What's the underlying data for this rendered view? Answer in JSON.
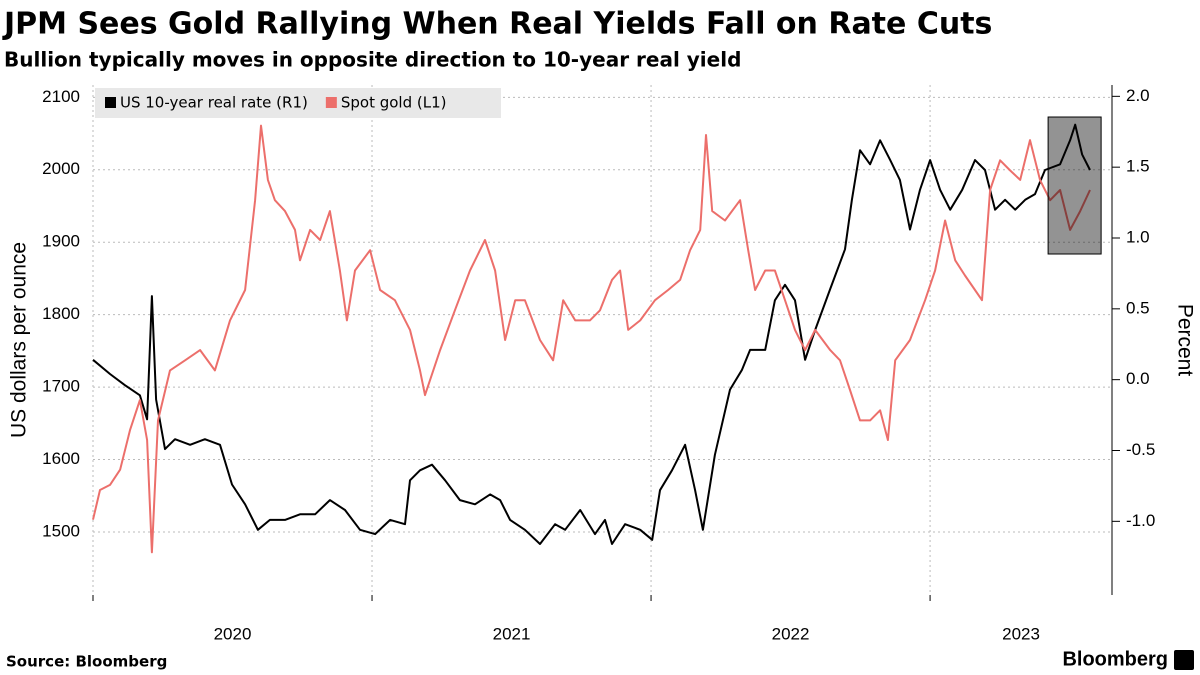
{
  "chart_data": {
    "type": "line",
    "title": "JPM Sees Gold Rallying When Real Yields Fall on Rate Cuts",
    "subtitle": "Bullion typically moves in opposite direction to 10-year real yield",
    "y_label": "US dollars per ounce",
    "y2_label": "Percent",
    "source": "Source: Bloomberg",
    "brand": "Bloomberg",
    "xlim": [
      2020,
      2023.652
    ],
    "xticks": [
      2020,
      2021,
      2022,
      2023
    ],
    "ylim": [
      1413,
      2117
    ],
    "yticks": [
      1500,
      1600,
      1700,
      1800,
      1900,
      2000,
      2100
    ],
    "y2lim": [
      -1.52,
      2.08
    ],
    "y2ticks": [
      {
        "value": -1.0,
        "label": "-1.0"
      },
      -0.5,
      {
        "value": 0.0,
        "label": "0.0"
      },
      0.5,
      {
        "value": 1.0,
        "label": "1.0"
      },
      1.5,
      {
        "value": 2.0,
        "label": "2.0"
      }
    ],
    "grid": true,
    "legend": "top-left",
    "highlight": {
      "x": [
        2023.423,
        2023.613
      ],
      "y2": [
        0.887,
        1.854
      ],
      "color": "#808080"
    },
    "series": [
      {
        "name": "US 10-year real rate (R1)",
        "color": "#000000",
        "axis": "y2",
        "x": [
          2020.0,
          2020.061,
          2020.115,
          2020.168,
          2020.194,
          2020.211,
          2020.226,
          2020.258,
          2020.294,
          2020.348,
          2020.401,
          2020.455,
          2020.498,
          2020.545,
          2020.591,
          2020.634,
          2020.688,
          2020.742,
          2020.796,
          2020.849,
          2020.903,
          2020.957,
          2021.011,
          2021.065,
          2021.118,
          2021.136,
          2021.172,
          2021.215,
          2021.262,
          2021.315,
          2021.369,
          2021.423,
          2021.459,
          2021.495,
          2021.548,
          2021.602,
          2021.656,
          2021.692,
          2021.746,
          2021.799,
          2021.835,
          2021.86,
          2021.907,
          2021.961,
          2022.004,
          2022.032,
          2022.075,
          2022.122,
          2022.158,
          2022.186,
          2022.229,
          2022.283,
          2022.326,
          2022.355,
          2022.409,
          2022.444,
          2022.48,
          2022.516,
          2022.552,
          2022.588,
          2022.642,
          2022.695,
          2022.72,
          2022.749,
          2022.785,
          2022.821,
          2022.857,
          2022.892,
          2022.928,
          2022.964,
          2023.0,
          2023.036,
          2023.072,
          2023.115,
          2023.161,
          2023.197,
          2023.233,
          2023.269,
          2023.305,
          2023.341,
          2023.376,
          2023.412,
          2023.466,
          2023.502,
          2023.52,
          2023.545,
          2023.573
        ],
        "values": [
          0.14,
          0.04,
          -0.04,
          -0.11,
          -0.28,
          0.59,
          -0.14,
          -0.49,
          -0.42,
          -0.46,
          -0.42,
          -0.46,
          -0.74,
          -0.88,
          -1.06,
          -0.99,
          -0.99,
          -0.95,
          -0.95,
          -0.85,
          -0.92,
          -1.06,
          -1.09,
          -0.99,
          -1.02,
          -0.71,
          -0.64,
          -0.6,
          -0.71,
          -0.85,
          -0.88,
          -0.81,
          -0.85,
          -0.99,
          -1.06,
          -1.16,
          -1.02,
          -1.06,
          -0.92,
          -1.09,
          -0.99,
          -1.16,
          -1.02,
          -1.06,
          -1.13,
          -0.78,
          -0.64,
          -0.46,
          -0.78,
          -1.06,
          -0.53,
          -0.07,
          0.07,
          0.21,
          0.21,
          0.56,
          0.67,
          0.56,
          0.14,
          0.35,
          0.64,
          0.92,
          1.27,
          1.62,
          1.52,
          1.69,
          1.55,
          1.41,
          1.06,
          1.34,
          1.55,
          1.34,
          1.2,
          1.34,
          1.55,
          1.48,
          1.2,
          1.27,
          1.2,
          1.27,
          1.31,
          1.48,
          1.52,
          1.69,
          1.8,
          1.59,
          1.48
        ]
      },
      {
        "name": "Spot gold (L1)",
        "color": "#ec6f6b",
        "axis": "y",
        "x": [
          2020.0,
          2020.025,
          2020.061,
          2020.097,
          2020.133,
          2020.168,
          2020.194,
          2020.211,
          2020.233,
          2020.276,
          2020.33,
          2020.384,
          2020.437,
          2020.491,
          2020.545,
          2020.581,
          2020.602,
          2020.627,
          2020.652,
          2020.688,
          2020.724,
          2020.742,
          2020.778,
          2020.814,
          2020.849,
          2020.885,
          2020.91,
          2020.939,
          2020.993,
          2021.029,
          2021.082,
          2021.136,
          2021.172,
          2021.19,
          2021.244,
          2021.297,
          2021.351,
          2021.405,
          2021.441,
          2021.477,
          2021.513,
          2021.548,
          2021.602,
          2021.649,
          2021.685,
          2021.728,
          2021.781,
          2021.817,
          2021.86,
          2021.889,
          2021.918,
          2021.961,
          2022.014,
          2022.061,
          2022.104,
          2022.14,
          2022.176,
          2022.197,
          2022.219,
          2022.265,
          2022.319,
          2022.348,
          2022.373,
          2022.409,
          2022.444,
          2022.48,
          2022.516,
          2022.552,
          2022.588,
          2022.642,
          2022.677,
          2022.713,
          2022.749,
          2022.785,
          2022.821,
          2022.849,
          2022.875,
          2022.928,
          2022.982,
          2023.018,
          2023.054,
          2023.09,
          2023.125,
          2023.161,
          2023.186,
          2023.215,
          2023.251,
          2023.287,
          2023.323,
          2023.358,
          2023.394,
          2023.43,
          2023.466,
          2023.502,
          2023.538,
          2023.573
        ],
        "values": [
          1517,
          1558,
          1565,
          1586,
          1641,
          1682,
          1627,
          1472,
          1654,
          1723,
          1737,
          1751,
          1723,
          1792,
          1834,
          1958,
          2061,
          1986,
          1958,
          1943,
          1917,
          1875,
          1917,
          1903,
          1943,
          1861,
          1792,
          1861,
          1889,
          1834,
          1820,
          1779,
          1723,
          1689,
          1751,
          1806,
          1861,
          1903,
          1861,
          1765,
          1820,
          1820,
          1765,
          1737,
          1820,
          1792,
          1792,
          1806,
          1848,
          1861,
          1779,
          1792,
          1820,
          1834,
          1848,
          1889,
          1917,
          2048,
          1943,
          1930,
          1958,
          1889,
          1834,
          1861,
          1861,
          1820,
          1779,
          1751,
          1779,
          1751,
          1737,
          1696,
          1654,
          1654,
          1668,
          1627,
          1737,
          1765,
          1820,
          1861,
          1930,
          1875,
          1854,
          1834,
          1820,
          1972,
          2013,
          1999,
          1986,
          2041,
          1986,
          1958,
          1972,
          1917,
          1943,
          1972
        ]
      }
    ]
  }
}
